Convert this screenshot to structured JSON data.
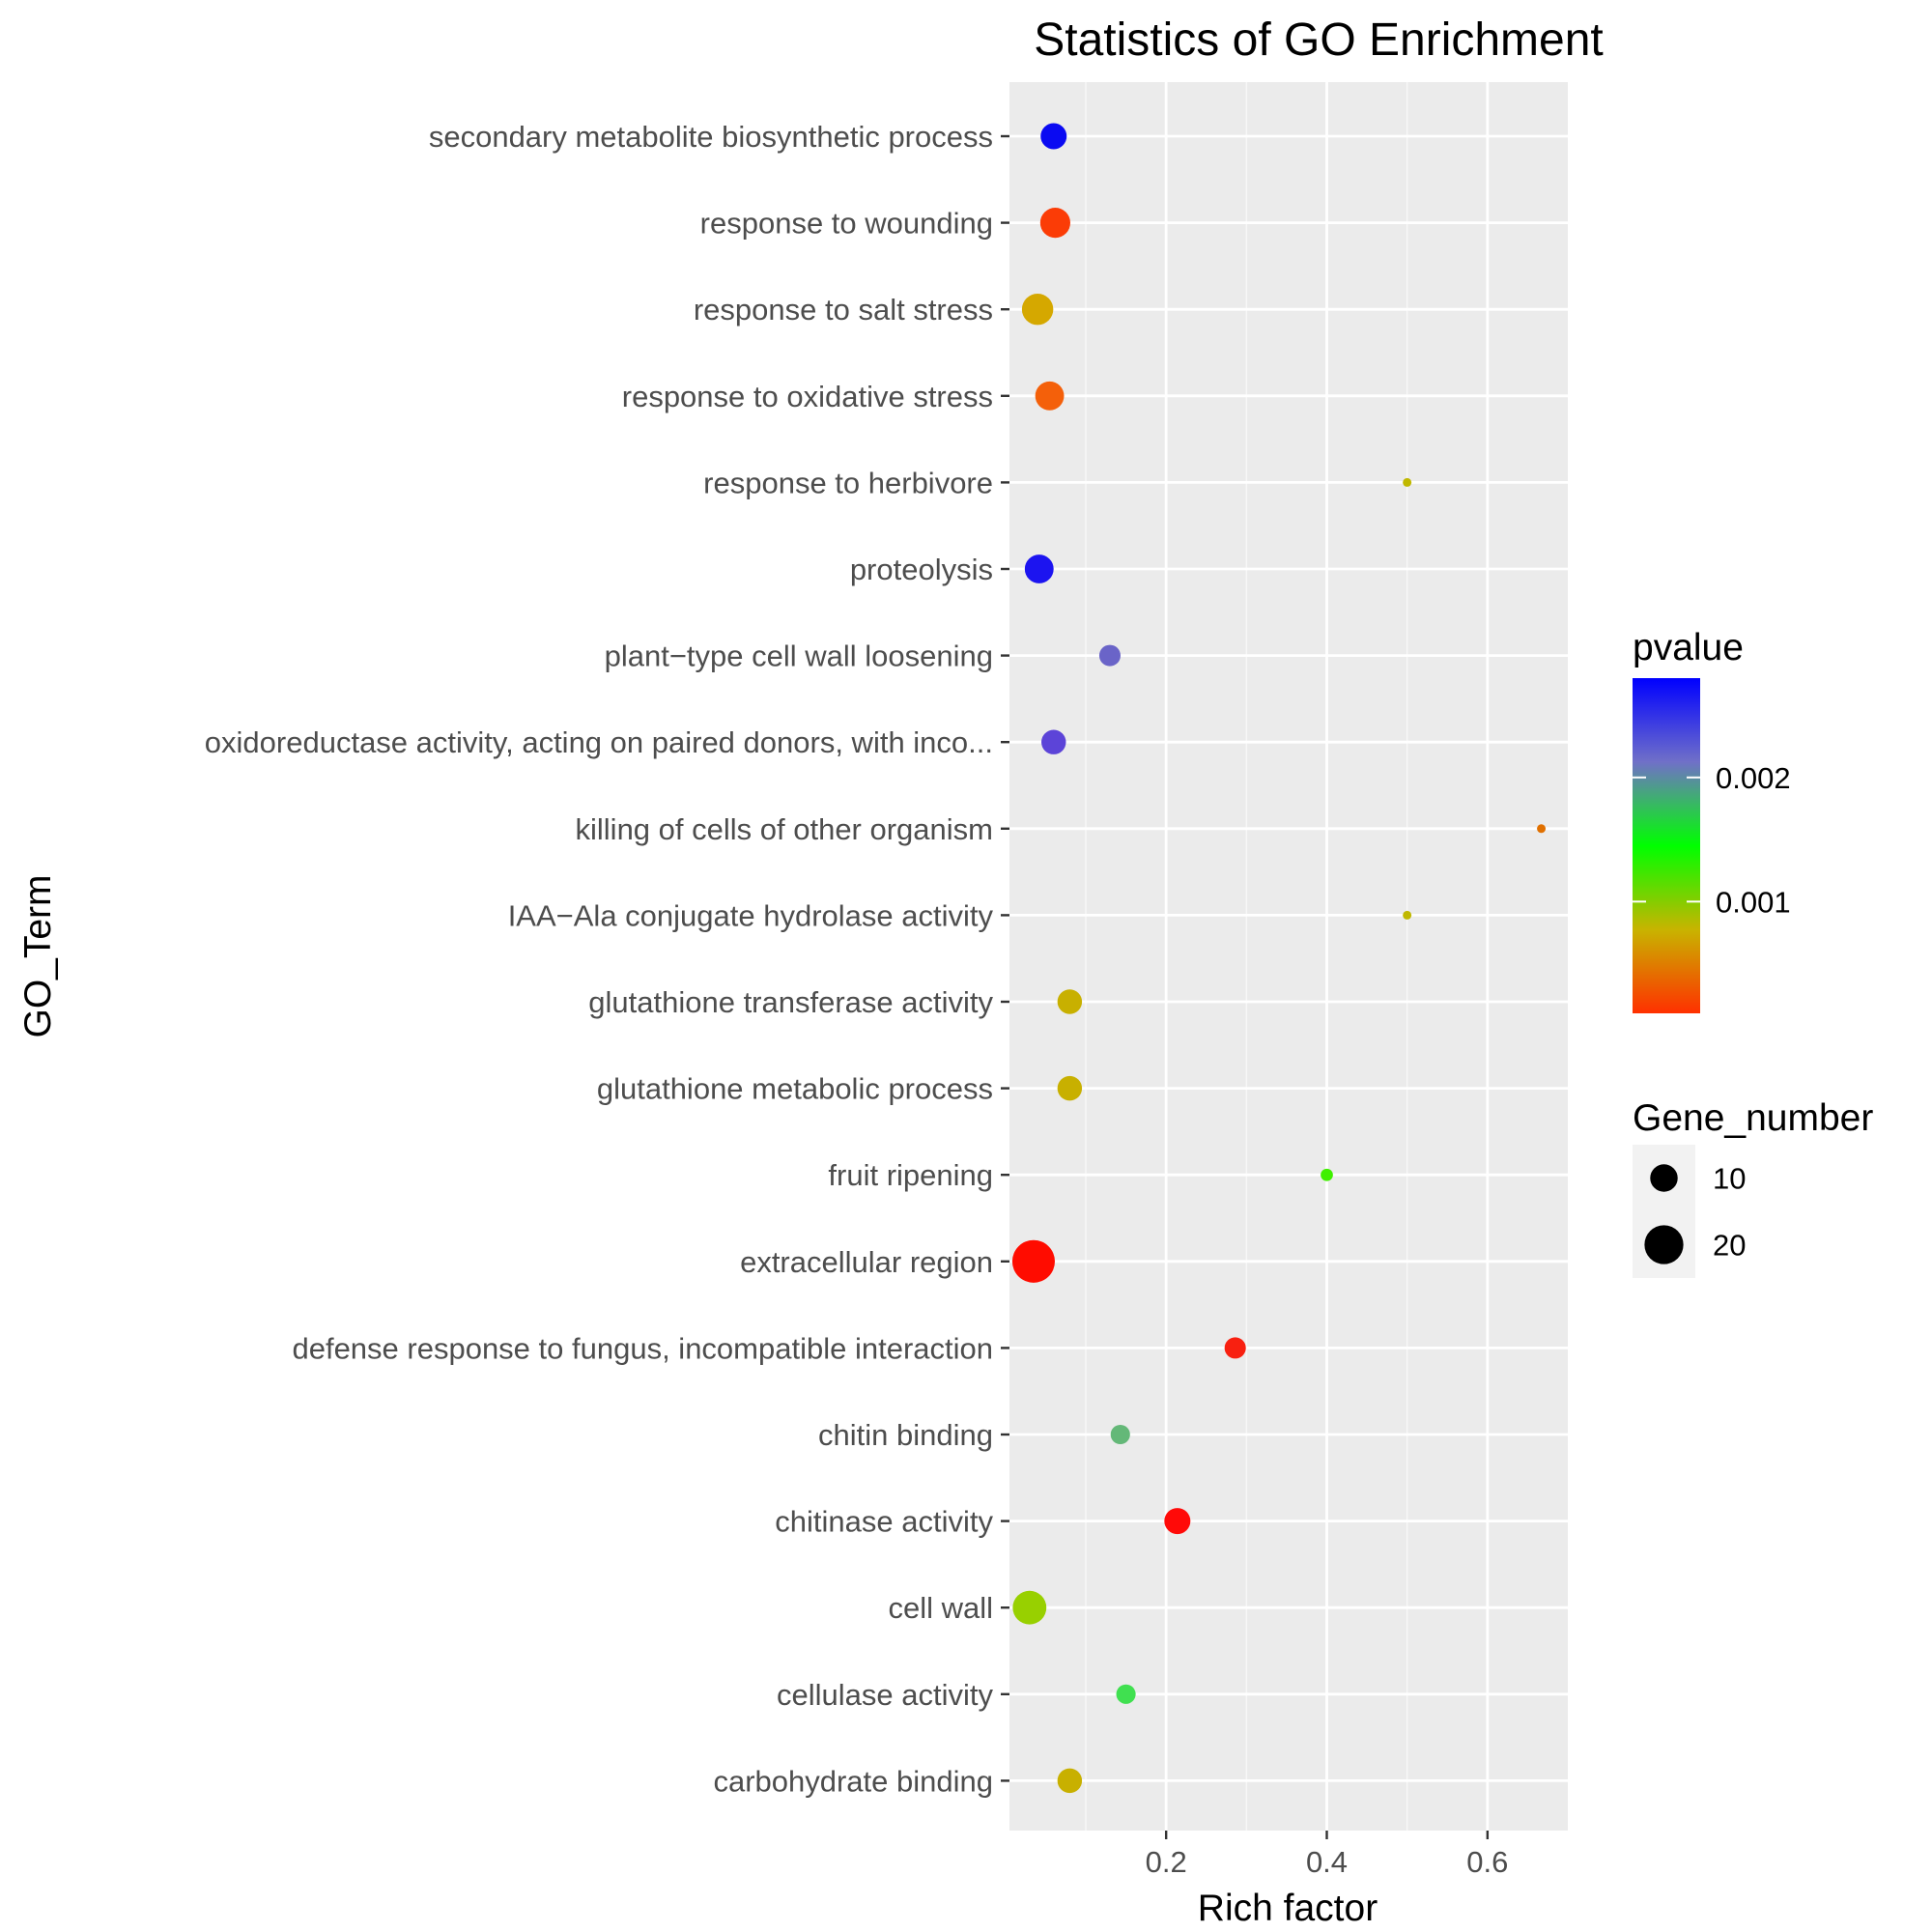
{
  "chart_data": {
    "type": "scatter",
    "title": "Statistics of GO Enrichment",
    "xlabel": "Rich factor",
    "ylabel": "GO_Term",
    "xlim": [
      0.005,
      0.7
    ],
    "x_ticks": [
      "0.2",
      "0.4",
      "0.6"
    ],
    "x_tick_values": [
      0.2,
      0.4,
      0.6
    ],
    "grid": true,
    "legend_position": "right",
    "color_legend": {
      "title": "pvalue",
      "range": [
        0.0001,
        0.0028
      ],
      "ticks": [
        {
          "label": "0.002",
          "value": 0.002
        },
        {
          "label": "0.001",
          "value": 0.001
        }
      ],
      "colors_low_to_high": [
        "#ff3000",
        "#c8b400",
        "#00ff00",
        "#7070c8",
        "#0000ff"
      ]
    },
    "size_legend": {
      "title": "Gene_number",
      "entries": [
        {
          "label": "10",
          "value": 10
        },
        {
          "label": "20",
          "value": 20
        }
      ]
    },
    "points": [
      {
        "term": "secondary metabolite biosynthetic process",
        "rich_factor": 0.06,
        "gene_number": 9,
        "pvalue": 0.0028,
        "color": "#0a0af2"
      },
      {
        "term": "response to wounding",
        "rich_factor": 0.062,
        "gene_number": 12,
        "pvalue": 0.0001,
        "color": "#fb3c06"
      },
      {
        "term": "response to salt stress",
        "rich_factor": 0.04,
        "gene_number": 13,
        "pvalue": 0.0006,
        "color": "#d5a800"
      },
      {
        "term": "response to oxidative stress",
        "rich_factor": 0.055,
        "gene_number": 11,
        "pvalue": 0.0002,
        "color": "#f4600a"
      },
      {
        "term": "response to herbivore",
        "rich_factor": 0.5,
        "gene_number": 1,
        "pvalue": 0.0009,
        "color": "#c0b800"
      },
      {
        "term": "proteolysis",
        "rich_factor": 0.042,
        "gene_number": 11,
        "pvalue": 0.0027,
        "color": "#1c14f0"
      },
      {
        "term": "plant−type cell wall loosening",
        "rich_factor": 0.13,
        "gene_number": 6,
        "pvalue": 0.0024,
        "color": "#6a64c8"
      },
      {
        "term": "oxidoreductase activity, acting on paired donors, with inco...",
        "rich_factor": 0.06,
        "gene_number": 8,
        "pvalue": 0.0025,
        "color": "#5c44d8"
      },
      {
        "term": "killing of cells of other organism",
        "rich_factor": 0.667,
        "gene_number": 1,
        "pvalue": 0.0004,
        "color": "#e07000"
      },
      {
        "term": "IAA−Ala conjugate hydrolase activity",
        "rich_factor": 0.5,
        "gene_number": 1,
        "pvalue": 0.0009,
        "color": "#c0b800"
      },
      {
        "term": "glutathione transferase activity",
        "rich_factor": 0.08,
        "gene_number": 8,
        "pvalue": 0.0008,
        "color": "#c8b000"
      },
      {
        "term": "glutathione metabolic process",
        "rich_factor": 0.08,
        "gene_number": 8,
        "pvalue": 0.0008,
        "color": "#c8b000"
      },
      {
        "term": "fruit ripening",
        "rich_factor": 0.4,
        "gene_number": 2,
        "pvalue": 0.0015,
        "color": "#40f000"
      },
      {
        "term": "extracellular region",
        "rich_factor": 0.035,
        "gene_number": 24,
        "pvalue": 0.0001,
        "color": "#ff0c00"
      },
      {
        "term": "defense response to fungus, incompatible interaction",
        "rich_factor": 0.286,
        "gene_number": 6,
        "pvalue": 0.0001,
        "color": "#f82010"
      },
      {
        "term": "chitin binding",
        "rich_factor": 0.143,
        "gene_number": 5,
        "pvalue": 0.0019,
        "color": "#64b878"
      },
      {
        "term": "chitinase activity",
        "rich_factor": 0.214,
        "gene_number": 9,
        "pvalue": 0.0001,
        "color": "#ff0a08"
      },
      {
        "term": "cell wall",
        "rich_factor": 0.03,
        "gene_number": 15,
        "pvalue": 0.0012,
        "color": "#98d000"
      },
      {
        "term": "cellulase activity",
        "rich_factor": 0.15,
        "gene_number": 5,
        "pvalue": 0.0017,
        "color": "#40e050"
      },
      {
        "term": "carbohydrate binding",
        "rich_factor": 0.08,
        "gene_number": 8,
        "pvalue": 0.0008,
        "color": "#c8b000"
      }
    ]
  }
}
